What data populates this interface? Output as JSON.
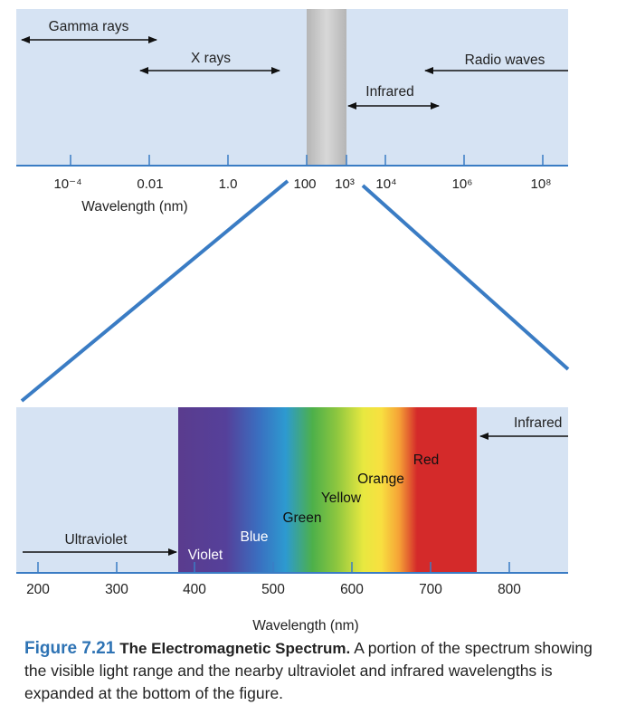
{
  "top_scale": {
    "tick_labels": [
      "10⁻⁴",
      "0.01",
      "1.0",
      "100",
      "10³",
      "10⁴",
      "10⁶",
      "10⁸"
    ],
    "axis_label": "Wavelength (nm)",
    "bands": {
      "gamma": "Gamma rays",
      "xray": "X rays",
      "radio": "Radio waves",
      "infrared": "Infrared"
    }
  },
  "bottom_scale": {
    "tick_labels": [
      "200",
      "300",
      "400",
      "500",
      "600",
      "700",
      "800"
    ],
    "axis_label": "Wavelength (nm)",
    "bands": {
      "ultraviolet": "Ultraviolet",
      "infrared": "Infrared"
    },
    "colors": {
      "violet": "Violet",
      "blue": "Blue",
      "green": "Green",
      "yellow": "Yellow",
      "orange": "Orange",
      "red": "Red"
    }
  },
  "caption": {
    "number": "Figure 7.21",
    "title": "The Electromagnetic Spectrum.",
    "text": "A portion of the spectrum showing the visible light range and the nearby ultraviolet and infrared wavelengths is expanded at the bottom of the figure."
  },
  "palette": {
    "panel": "#d6e3f3",
    "axis": "#3a7cc4",
    "connector": "#3a7cc4",
    "caption_accent": "#2e73b4"
  }
}
